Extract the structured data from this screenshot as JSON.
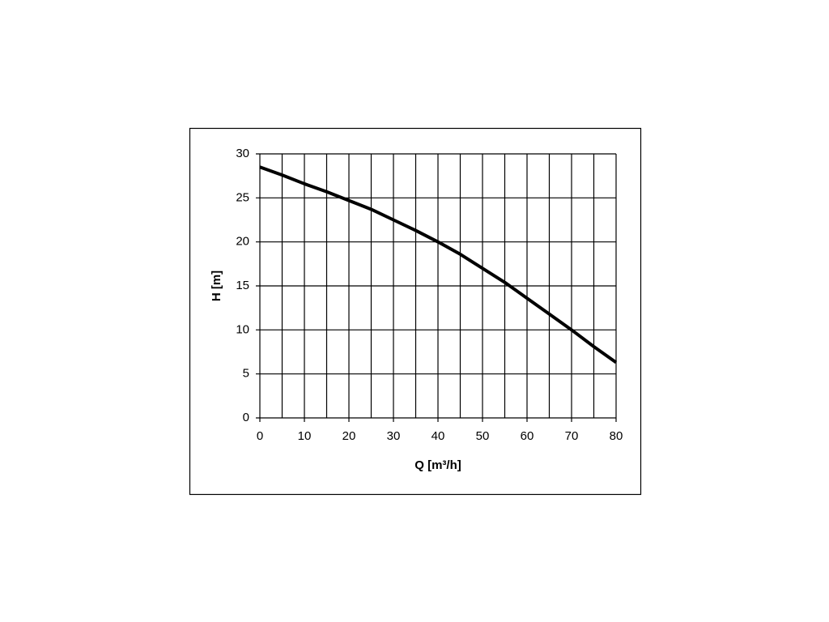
{
  "chart_data": {
    "type": "line",
    "x_label": "Q [m³/h]",
    "y_label": "H [m]",
    "x": [
      0,
      5,
      10,
      15,
      20,
      25,
      30,
      35,
      40,
      45,
      50,
      55,
      60,
      65,
      70,
      75,
      80
    ],
    "series": [
      {
        "color": "#000000",
        "values": [
          28.5,
          27.6,
          26.6,
          25.7,
          24.7,
          23.7,
          22.5,
          21.3,
          20.0,
          18.6,
          17.0,
          15.4,
          13.6,
          11.8,
          10.0,
          8.1,
          6.3
        ]
      }
    ],
    "xlim": [
      0,
      80
    ],
    "xticks": [
      0,
      10,
      20,
      30,
      40,
      50,
      60,
      70,
      80
    ],
    "xgrid": [
      0,
      5,
      10,
      15,
      20,
      25,
      30,
      35,
      40,
      45,
      50,
      55,
      60,
      65,
      70,
      75,
      80
    ],
    "ylim": [
      0,
      30
    ],
    "yticks": [
      0,
      5,
      10,
      15,
      20,
      25,
      30
    ],
    "grid": true
  }
}
